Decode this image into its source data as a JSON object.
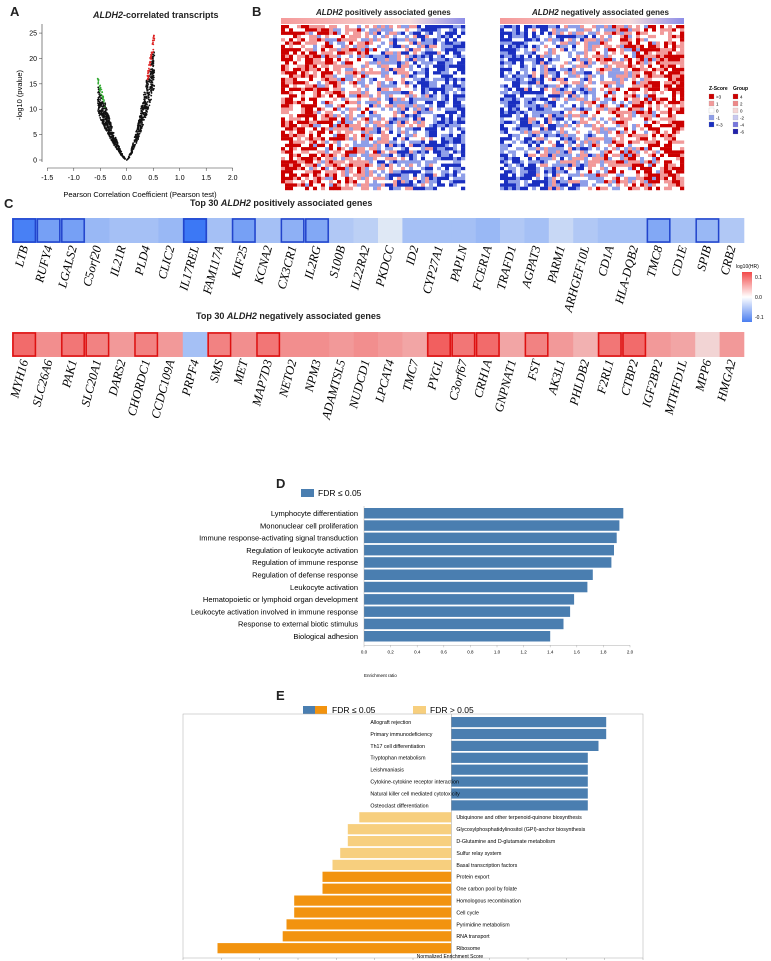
{
  "panels": {
    "a": "A",
    "b": "B",
    "c": "C",
    "d": "D",
    "e": "E"
  },
  "panelA": {
    "title_gene": "ALDH2",
    "title_rest": "-correlated transcripts",
    "chart_data": {
      "type": "scatter",
      "title": "ALDH2-correlated transcripts",
      "xlabel": "Pearson Correlation Coefficient (Pearson test)",
      "ylabel": "-log10 (pvalue)",
      "xlim": [
        -1.6,
        2.1
      ],
      "ylim": [
        0,
        26
      ],
      "xticks": [
        "-1.5",
        "-1.0",
        "-0.5",
        "0.0",
        "0.5",
        "1.0",
        "1.5",
        "2.0"
      ],
      "yticks": [
        "0",
        "5",
        "10",
        "15",
        "20",
        "25"
      ],
      "series": [
        {
          "color": "#33aa33",
          "role": "negative-significant"
        },
        {
          "color": "#111111",
          "role": "not-significant"
        },
        {
          "color": "#dd2222",
          "role": "positive-significant"
        }
      ],
      "summary": {
        "min_r": -0.55,
        "max_r": 0.52,
        "max_logp": 25.5
      }
    }
  },
  "panelB": {
    "left_gene": "ALDH2",
    "left_rest": " positively associated genes",
    "right_gene": "ALDH2",
    "right_rest": " negatively associated genes",
    "legend": {
      "zscore_title": "Z-Score",
      "group_title": "Group",
      "zscore_items": [
        ">3",
        "1",
        "0",
        "-1",
        "<-3"
      ],
      "group_items": [
        "4",
        "2",
        "0",
        "-2",
        "-4",
        "-6"
      ],
      "colors": [
        "#cc0000",
        "#f29a9a",
        "#ffffff",
        "#8e9ee8",
        "#1a2fc0"
      ]
    }
  },
  "panelC": {
    "title1_pre": "Top 30 ",
    "title1_gene": "ALDH2",
    "title1_post": " positively associated genes",
    "title2_pre": "Top 30 ",
    "title2_gene": "ALDH2",
    "title2_post": " negatively associated genes",
    "legend_title": "log10(HR)",
    "legend_ticks": [
      "0.1",
      "0.0",
      "-0.1"
    ],
    "positive_genes": [
      "LTB",
      "RUFY4",
      "LGALS2",
      "C5orf20",
      "IL21R",
      "PLD4",
      "CLIC2",
      "IL17REL",
      "FAM117A",
      "KIF25",
      "KCNA2",
      "CX3CR1",
      "IL2RG",
      "S100B",
      "IL22RA2",
      "PKDCC",
      "ID2",
      "CYP27A1",
      "PAPLN",
      "FCER1A",
      "TRAFD1",
      "AGPAT3",
      "PARM1",
      "ARHGEF10L",
      "CD1A",
      "HLA-DQB2",
      "TMC8",
      "CD1E",
      "SPIB",
      "CRB2"
    ],
    "positive_values": [
      -0.7,
      -0.5,
      -0.5,
      -0.35,
      -0.3,
      -0.3,
      -0.35,
      -0.75,
      -0.3,
      -0.5,
      -0.3,
      -0.4,
      -0.45,
      -0.25,
      -0.2,
      -0.05,
      -0.3,
      -0.3,
      -0.3,
      -0.35,
      -0.25,
      -0.3,
      -0.15,
      -0.25,
      -0.3,
      -0.3,
      -0.45,
      -0.3,
      -0.35,
      -0.25
    ],
    "positive_highlight": [
      true,
      true,
      true,
      false,
      false,
      false,
      false,
      true,
      false,
      true,
      false,
      true,
      true,
      false,
      false,
      false,
      false,
      false,
      false,
      false,
      false,
      false,
      false,
      false,
      false,
      false,
      true,
      false,
      true,
      false
    ],
    "negative_genes": [
      "MYH16",
      "SLC26A6",
      "PAK1",
      "SLC20A1",
      "DARS2",
      "CHORDC1",
      "CCDC109A",
      "PRPF4",
      "SMS",
      "MET",
      "MAP7D3",
      "NETO2",
      "NPM3",
      "ADAMTSL5",
      "NUDCD1",
      "LPCAT4",
      "TMC7",
      "PYGL",
      "C3orf67",
      "CRH1A",
      "GNPNAT1",
      "FST",
      "AK3L1",
      "PHLDB2",
      "F2RL1",
      "CTBP2",
      "IGF2BP2",
      "MTHFD1L",
      "MPP6",
      "HMGA2"
    ],
    "negative_values": [
      0.55,
      0.4,
      0.5,
      0.45,
      0.35,
      0.45,
      0.35,
      -0.3,
      0.45,
      0.4,
      0.5,
      0.4,
      0.4,
      0.35,
      0.4,
      0.35,
      0.3,
      0.6,
      0.5,
      0.55,
      0.3,
      0.45,
      0.35,
      0.25,
      0.5,
      0.55,
      0.35,
      0.3,
      0.1,
      0.35
    ],
    "negative_highlight": [
      true,
      false,
      true,
      true,
      false,
      true,
      false,
      false,
      true,
      false,
      true,
      false,
      false,
      false,
      false,
      false,
      false,
      true,
      true,
      true,
      false,
      true,
      false,
      false,
      true,
      true,
      false,
      false,
      false,
      false
    ]
  },
  "panelD": {
    "legend_label": "FDR ≤ 0.05",
    "chart_data": {
      "type": "bar",
      "orientation": "horizontal",
      "categories": [
        "Lymphocyte differentiation",
        "Mononuclear cell proliferation",
        "Immune response-activating signal transduction",
        "Regulation of leukocyte activation",
        "Regulation of immune response",
        "Regulation of defense response",
        "Leukocyte activation",
        "Hematopoietic or lymphoid organ development",
        "Leukocyte activation involved in immune response",
        "Response to external biotic stimulus",
        "Biological adhesion"
      ],
      "values": [
        1.95,
        1.92,
        1.9,
        1.88,
        1.86,
        1.72,
        1.68,
        1.58,
        1.55,
        1.5,
        1.4
      ],
      "xlabel": "Enrichment ratio",
      "xticks": [
        "0.0",
        "0.2",
        "0.4",
        "0.6",
        "0.8",
        "1.0",
        "1.2",
        "1.4",
        "1.6",
        "1.8",
        "2.0"
      ],
      "xlim": [
        0,
        2.0
      ],
      "color": "#4a7eb0"
    }
  },
  "panelE": {
    "legend1": "FDR ≤ 0.05",
    "legend2": "FDR > 0.05",
    "chart_data": {
      "type": "bar",
      "orientation": "horizontal",
      "categories": [
        "Allograft rejection",
        "Primary immunodeficiency",
        "Th17 cell differentiation",
        "Tryptophan metabolism",
        "Leishmaniasis",
        "Cytokine-cytokine receptor interaction",
        "Natural killer cell mediated cytotoxicity",
        "Osteoclast differentiation",
        "Ubiquinone and other terpenoid-quinone biosynthesis",
        "Glycosylphosphatidylinositol (GPI)-anchor biosynthesis",
        "D-Glutamine and D-glutamate metabolism",
        "Sulfur relay system",
        "Basal transcription factors",
        "Protein export",
        "One carbon pool by folate",
        "Homologous recombination",
        "Cell cycle",
        "Pyrimidine metabolism",
        "RNA transport",
        "Ribosome"
      ],
      "values": [
        2.02,
        2.02,
        1.92,
        1.78,
        1.78,
        1.78,
        1.78,
        1.78,
        -1.2,
        -1.35,
        -1.35,
        -1.45,
        -1.55,
        -1.68,
        -1.68,
        -2.05,
        -2.05,
        -2.15,
        -2.2,
        -3.05
      ],
      "fdr_significant": [
        true,
        true,
        true,
        true,
        true,
        true,
        true,
        true,
        false,
        false,
        false,
        false,
        false,
        true,
        true,
        true,
        true,
        true,
        true,
        true
      ],
      "xlabel": "Normalized Enrichment Score",
      "xticks": [
        "-3.5",
        "-3.0",
        "-2.5",
        "-2.0",
        "-1.5",
        "-1.0",
        "-0.5",
        "0.0",
        "0.5",
        "1.0",
        "1.5",
        "2.0",
        "2.5"
      ],
      "xlim": [
        -3.5,
        2.5
      ],
      "colors": {
        "pos": "#4a7eb0",
        "neg_sig": "#f2930f",
        "neg_nonsig": "#f7cf7e"
      }
    }
  }
}
